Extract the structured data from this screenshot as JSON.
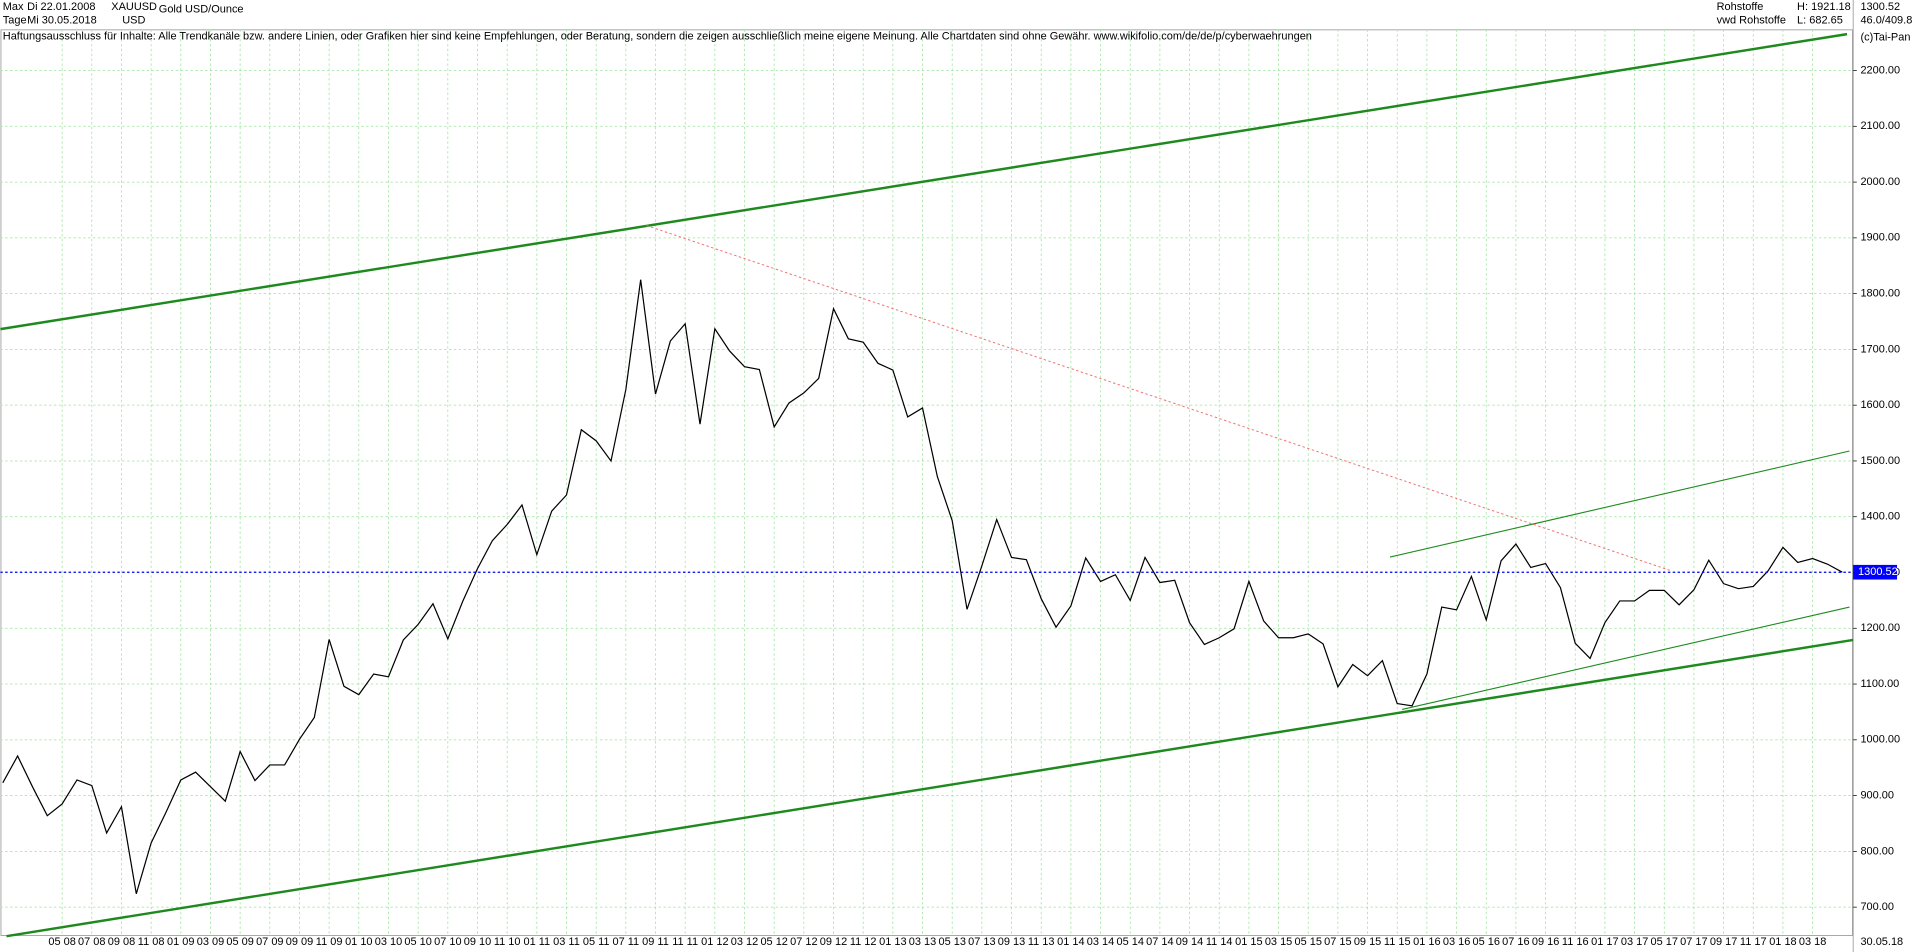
{
  "header": {
    "range": "Max",
    "start_date": "Di 22.01.2008",
    "symbol": "XAUUSD",
    "instrument": "Gold USD/Ounce",
    "interval": "Tage",
    "end_date": "Mi 30.05.2018",
    "currency": "USD",
    "group": "Rohstoffe",
    "high": "H: 1921.18",
    "last": "1300.52",
    "source": "vwd Rohstoffe",
    "low": "L: 682.65",
    "ratio": "46.0/409.8",
    "disclaimer": "Haftungsausschluss für Inhalte: Alle Trendkanäle bzw. andere Linien, oder Grafiken hier sind keine Empfehlungen, oder Beratung, sondern die zeigen ausschließlich meine eigene Meinung. Alle Chartdaten sind ohne Gewähr.  www.wikifolio.com/de/de/p/cyberwaehrungen",
    "copyright": "(c)Tai-Pan",
    "end_label": "30.05.18"
  },
  "chart_data": {
    "type": "line",
    "title": "Gold USD/Ounce",
    "categories": [
      null,
      null,
      null,
      null,
      "05 08",
      null,
      "07 08",
      null,
      "09 08",
      null,
      "11 08",
      null,
      "01 09",
      null,
      "03 09",
      null,
      "05 09",
      null,
      "07 09",
      null,
      "09 09",
      null,
      "11 09",
      null,
      "01 10",
      null,
      "03 10",
      null,
      "05 10",
      null,
      "07 10",
      null,
      "09 10",
      null,
      "11 10",
      null,
      "01 11",
      null,
      "03 11",
      null,
      "05 11",
      null,
      "07 11",
      null,
      "09 11",
      null,
      "11 11",
      null,
      "01 12",
      null,
      "03 12",
      null,
      "05 12",
      null,
      "07 12",
      null,
      "09 12",
      null,
      "11 12",
      null,
      "01 13",
      null,
      "03 13",
      null,
      "05 13",
      null,
      "07 13",
      null,
      "09 13",
      null,
      "11 13",
      null,
      "01 14",
      null,
      "03 14",
      null,
      "05 14",
      null,
      "07 14",
      null,
      "09 14",
      null,
      "11 14",
      null,
      "01 15",
      null,
      "03 15",
      null,
      "05 15",
      null,
      "07 15",
      null,
      "09 15",
      null,
      "11 15",
      null,
      "01 16",
      null,
      "03 16",
      null,
      "05 16",
      null,
      "07 16",
      null,
      "09 16",
      null,
      "11 16",
      null,
      "01 17",
      null,
      "03 17",
      null,
      "05 17",
      null,
      "07 17",
      null,
      "09 17",
      null,
      "11 17",
      null,
      "01 18",
      null,
      "03 18",
      null,
      null
    ],
    "series": [
      {
        "name": "XAUUSD",
        "color": "#000000",
        "values": [
          923,
          971,
          916,
          864,
          885,
          928,
          918,
          833,
          880,
          724,
          815,
          870,
          928,
          942,
          916,
          890,
          979,
          927,
          955,
          955,
          1001,
          1040,
          1180,
          1096,
          1081,
          1118,
          1113,
          1179,
          1207,
          1244,
          1181,
          1248,
          1307,
          1357,
          1386,
          1421,
          1332,
          1410,
          1439,
          1556,
          1536,
          1500,
          1628,
          1825,
          1620,
          1715,
          1746,
          1566,
          1737,
          1697,
          1669,
          1664,
          1561,
          1604,
          1622,
          1648,
          1773,
          1719,
          1713,
          1675,
          1663,
          1579,
          1595,
          1472,
          1393,
          1234,
          1312,
          1395,
          1327,
          1323,
          1253,
          1202,
          1240,
          1326,
          1284,
          1296,
          1250,
          1327,
          1282,
          1286,
          1210,
          1171,
          1183,
          1199,
          1284,
          1213,
          1183,
          1183,
          1190,
          1172,
          1095,
          1135,
          1115,
          1142,
          1065,
          1061,
          1118,
          1238,
          1233,
          1293,
          1215,
          1321,
          1351,
          1309,
          1316,
          1273,
          1173,
          1146,
          1210,
          1249,
          1249,
          1268,
          1268,
          1242,
          1269,
          1322,
          1280,
          1271,
          1275,
          1303,
          1345,
          1318,
          1325,
          1315,
          1300.52
        ]
      }
    ],
    "last_price": 1300.52,
    "last_price_color": "#0000ff",
    "ylim": [
      648,
      2274
    ],
    "yticks": [
      {
        "value": 700,
        "label": "700.00"
      },
      {
        "value": 800,
        "label": "800.00"
      },
      {
        "value": 900,
        "label": "900.00"
      },
      {
        "value": 1000,
        "label": "1000.00"
      },
      {
        "value": 1100,
        "label": "1100.00"
      },
      {
        "value": 1200,
        "label": "1200.00"
      },
      {
        "value": 1300,
        "label": "1300.00"
      },
      {
        "value": 1400,
        "label": "1400.00"
      },
      {
        "value": 1500,
        "label": "1500.00"
      },
      {
        "value": 1600,
        "label": "1600.00"
      },
      {
        "value": 1700,
        "label": "1700.00"
      },
      {
        "value": 1800,
        "label": "1800.00"
      },
      {
        "value": 1900,
        "label": "1900.00"
      },
      {
        "value": 2000,
        "label": "2000.00"
      },
      {
        "value": 2100,
        "label": "2100.00"
      },
      {
        "value": 2200,
        "label": "2200.00"
      }
    ],
    "grid": true
  }
}
